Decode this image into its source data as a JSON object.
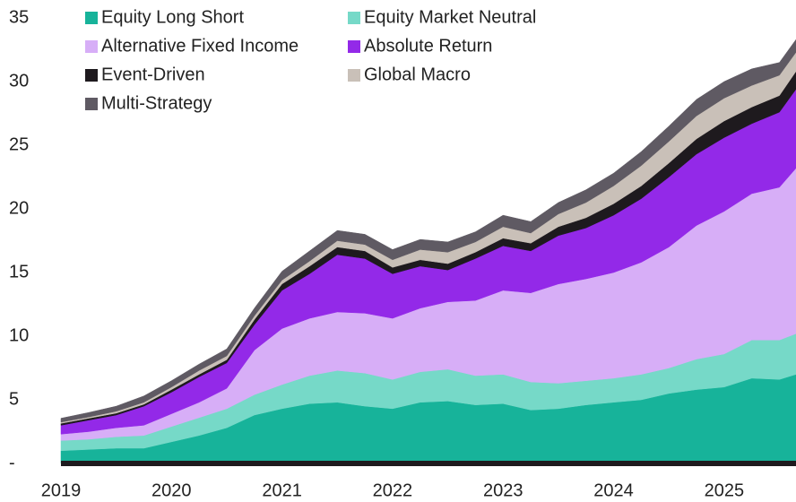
{
  "chart_data": {
    "type": "stacked_area",
    "x": [
      2019,
      2019.25,
      2019.5,
      2019.75,
      2020,
      2020.25,
      2020.5,
      2020.75,
      2021,
      2021.25,
      2021.5,
      2021.75,
      2022,
      2022.25,
      2022.5,
      2022.75,
      2023,
      2023.25,
      2023.5,
      2023.75,
      2024,
      2024.25,
      2024.5,
      2024.75,
      2025,
      2025.25,
      2025.5,
      2025.65
    ],
    "xlim": [
      2019,
      2025.65
    ],
    "xticks": [
      2019,
      2020,
      2021,
      2022,
      2023,
      2024,
      2025
    ],
    "ylim": [
      0,
      35
    ],
    "yticks": [
      {
        "value": 0,
        "label": "-"
      },
      5,
      10,
      15,
      20,
      25,
      30,
      35
    ],
    "legend": "top-left",
    "series": [
      {
        "name": "Equity Long Short",
        "color": "#17b39a",
        "values": [
          1.0,
          1.1,
          1.2,
          1.2,
          1.7,
          2.2,
          2.8,
          3.8,
          4.3,
          4.7,
          4.8,
          4.5,
          4.3,
          4.8,
          4.9,
          4.6,
          4.7,
          4.2,
          4.3,
          4.6,
          4.8,
          5.0,
          5.5,
          5.8,
          6.0,
          6.7,
          6.6,
          7.0
        ]
      },
      {
        "name": "Equity Market Neutral",
        "color": "#76d9c8",
        "values": [
          0.8,
          0.8,
          0.9,
          1.0,
          1.2,
          1.4,
          1.5,
          1.6,
          1.9,
          2.2,
          2.5,
          2.6,
          2.3,
          2.4,
          2.5,
          2.3,
          2.3,
          2.2,
          2.0,
          1.9,
          1.9,
          2.0,
          2.0,
          2.4,
          2.6,
          3.0,
          3.1,
          3.2
        ]
      },
      {
        "name": "Alternative Fixed Income",
        "color": "#d7aef7",
        "values": [
          0.5,
          0.6,
          0.7,
          0.8,
          1.0,
          1.2,
          1.6,
          3.5,
          4.4,
          4.5,
          4.6,
          4.7,
          4.8,
          5.0,
          5.3,
          5.9,
          6.6,
          7.0,
          7.8,
          8.0,
          8.3,
          8.8,
          9.5,
          10.5,
          11.2,
          11.5,
          12.0,
          13.0
        ]
      },
      {
        "name": "Absolute Return",
        "color": "#9329e8",
        "values": [
          0.7,
          0.9,
          1.0,
          1.5,
          1.7,
          2.0,
          2.0,
          2.0,
          3.0,
          3.5,
          4.5,
          4.3,
          3.5,
          3.3,
          2.5,
          3.3,
          3.5,
          3.3,
          3.8,
          4.0,
          4.5,
          5.0,
          5.5,
          5.6,
          5.8,
          5.5,
          5.9,
          6.2
        ]
      },
      {
        "name": "Event-Driven",
        "color": "#1e1a1e",
        "values": [
          0.15,
          0.15,
          0.15,
          0.15,
          0.2,
          0.2,
          0.25,
          0.4,
          0.5,
          0.6,
          0.6,
          0.6,
          0.5,
          0.5,
          0.5,
          0.5,
          0.6,
          0.6,
          0.7,
          0.8,
          0.9,
          1.0,
          1.1,
          1.2,
          1.3,
          1.3,
          1.3,
          1.4
        ]
      },
      {
        "name": "Global Macro",
        "color": "#c9c0b8",
        "values": [
          0.1,
          0.1,
          0.15,
          0.15,
          0.2,
          0.3,
          0.3,
          0.3,
          0.3,
          0.4,
          0.5,
          0.5,
          0.6,
          0.8,
          0.9,
          0.8,
          0.9,
          0.8,
          1.0,
          1.2,
          1.4,
          1.6,
          1.7,
          1.8,
          1.8,
          1.7,
          1.6,
          1.5
        ]
      },
      {
        "name": "Multi-Strategy",
        "color": "#5f5a63",
        "values": [
          0.3,
          0.35,
          0.4,
          0.5,
          0.5,
          0.5,
          0.55,
          0.6,
          0.7,
          0.8,
          0.8,
          0.8,
          0.8,
          0.8,
          0.8,
          0.8,
          0.9,
          0.9,
          0.9,
          1.0,
          1.0,
          1.1,
          1.2,
          1.3,
          1.3,
          1.3,
          1.0,
          1.0
        ]
      }
    ]
  }
}
